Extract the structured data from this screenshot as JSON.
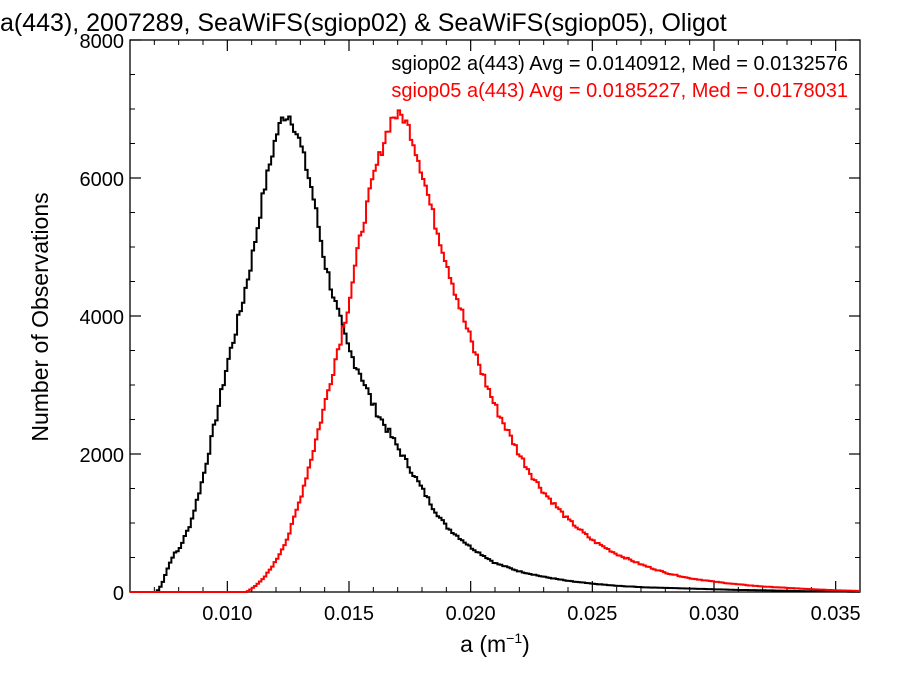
{
  "chart_data": {
    "type": "line",
    "title": "a(443), 2007289, SeaWiFS(sgiop02) & SeaWiFS(sgiop05), Oligot",
    "xlabel": "a (m",
    "xlabel_sup": "−1",
    "xlabel_close": ")",
    "ylabel": "Number of Observations",
    "xlim": [
      0.006,
      0.036
    ],
    "ylim": [
      0,
      8000
    ],
    "xticks": [
      0.01,
      0.015,
      0.02,
      0.025,
      0.03,
      0.035
    ],
    "xtick_labels": [
      "0.010",
      "0.015",
      "0.020",
      "0.025",
      "0.030",
      "0.035"
    ],
    "yticks": [
      0,
      2000,
      4000,
      6000,
      8000
    ],
    "ytick_labels": [
      "0",
      "2000",
      "4000",
      "6000",
      "8000"
    ],
    "grid": false,
    "legend_position": "top-right",
    "series": [
      {
        "name": "sgiop02 a(443) Avg = 0.0140912, Med = 0.0132576",
        "color": "#000000",
        "x": [
          0.006,
          0.0071,
          0.0073,
          0.0075,
          0.0078,
          0.008,
          0.0085,
          0.009,
          0.0095,
          0.01,
          0.0105,
          0.011,
          0.0115,
          0.012,
          0.0123,
          0.0126,
          0.013,
          0.0135,
          0.014,
          0.0145,
          0.015,
          0.0155,
          0.016,
          0.0165,
          0.017,
          0.0175,
          0.018,
          0.0185,
          0.019,
          0.02,
          0.021,
          0.022,
          0.023,
          0.024,
          0.025,
          0.026,
          0.027,
          0.028,
          0.029,
          0.03,
          0.031,
          0.032,
          0.034,
          0.036
        ],
        "y": [
          0,
          0,
          100,
          300,
          550,
          600,
          1000,
          1650,
          2450,
          3300,
          4000,
          4800,
          5800,
          6600,
          6900,
          6900,
          6500,
          5800,
          4800,
          4100,
          3500,
          3150,
          2700,
          2400,
          2100,
          1800,
          1500,
          1200,
          950,
          650,
          420,
          300,
          220,
          160,
          120,
          90,
          70,
          60,
          50,
          40,
          30,
          25,
          10,
          5
        ]
      },
      {
        "name": "sgiop05 a(443) Avg = 0.0185227, Med = 0.0178031",
        "color": "#ff0000",
        "x": [
          0.006,
          0.0108,
          0.0112,
          0.0115,
          0.012,
          0.0125,
          0.013,
          0.0135,
          0.014,
          0.0145,
          0.015,
          0.0155,
          0.016,
          0.0165,
          0.0168,
          0.0172,
          0.0175,
          0.018,
          0.0185,
          0.019,
          0.0195,
          0.02,
          0.0205,
          0.021,
          0.0215,
          0.022,
          0.0225,
          0.023,
          0.024,
          0.025,
          0.026,
          0.027,
          0.028,
          0.029,
          0.03,
          0.031,
          0.032,
          0.033,
          0.034,
          0.035,
          0.036
        ],
        "y": [
          0,
          0,
          100,
          200,
          450,
          800,
          1350,
          2000,
          2700,
          3450,
          4200,
          5200,
          6000,
          6600,
          6900,
          6900,
          6700,
          6100,
          5400,
          4800,
          4200,
          3650,
          3150,
          2700,
          2350,
          2000,
          1700,
          1450,
          1050,
          750,
          550,
          400,
          280,
          200,
          150,
          110,
          80,
          60,
          40,
          25,
          15
        ]
      }
    ]
  }
}
